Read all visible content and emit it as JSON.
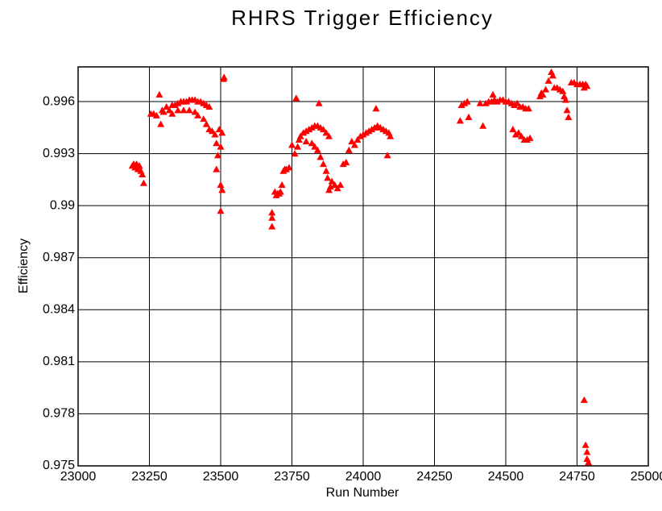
{
  "chart_data": {
    "type": "scatter",
    "title": "RHRS Trigger Efficiency",
    "xlabel": "Run Number",
    "ylabel": "Efficiency",
    "xlim": [
      23000,
      25000
    ],
    "ylim": [
      0.975,
      0.998
    ],
    "xticks": [
      23000,
      23250,
      23500,
      23750,
      24000,
      24250,
      24500,
      24750,
      25000
    ],
    "yticks": [
      0.975,
      0.978,
      0.981,
      0.984,
      0.987,
      0.99,
      0.993,
      0.996
    ],
    "grid": true,
    "series": [
      {
        "color": "#ff0000",
        "x": [
          23190,
          23195,
          23200,
          23205,
          23210,
          23215,
          23220,
          23225,
          23230,
          23255,
          23265,
          23275,
          23285,
          23290,
          23295,
          23300,
          23310,
          23320,
          23330,
          23340,
          23350,
          23360,
          23370,
          23380,
          23390,
          23400,
          23410,
          23420,
          23430,
          23440,
          23450,
          23460,
          23330,
          23350,
          23370,
          23390,
          23410,
          23420,
          23440,
          23450,
          23460,
          23470,
          23480,
          23485,
          23490,
          23485,
          23495,
          23500,
          23505,
          23500,
          23505,
          23500,
          23510,
          23512,
          23680,
          23680,
          23680,
          23690,
          23695,
          23700,
          23705,
          23710,
          23715,
          23720,
          23725,
          23730,
          23740,
          23750,
          23760,
          23765,
          23770,
          23775,
          23780,
          23790,
          23800,
          23810,
          23820,
          23830,
          23840,
          23845,
          23850,
          23860,
          23870,
          23880,
          23800,
          23820,
          23830,
          23840,
          23850,
          23860,
          23870,
          23875,
          23880,
          23885,
          23890,
          23900,
          23910,
          23920,
          23930,
          23940,
          23950,
          23960,
          23970,
          23980,
          23990,
          24000,
          24010,
          24020,
          24030,
          24040,
          24045,
          24050,
          24060,
          24070,
          24080,
          24085,
          24090,
          24095,
          24340,
          24345,
          24355,
          24365,
          24370,
          24410,
          24420,
          24430,
          24440,
          24450,
          24455,
          24460,
          24470,
          24480,
          24490,
          24500,
          24510,
          24520,
          24525,
          24530,
          24535,
          24540,
          24545,
          24550,
          24555,
          24560,
          24565,
          24570,
          24575,
          24580,
          24585,
          24620,
          24625,
          24630,
          24640,
          24650,
          24660,
          24665,
          24670,
          24680,
          24690,
          24700,
          24705,
          24710,
          24715,
          24720,
          24730,
          24740,
          24750,
          24760,
          24770,
          24775,
          24780,
          24785,
          24775,
          24780,
          24785,
          24785,
          24790
        ],
        "values": [
          0.9923,
          0.9924,
          0.9922,
          0.9924,
          0.9921,
          0.9923,
          0.992,
          0.9918,
          0.9913,
          0.9953,
          0.9953,
          0.9952,
          0.9964,
          0.9947,
          0.9955,
          0.9954,
          0.9957,
          0.9955,
          0.9958,
          0.9958,
          0.9959,
          0.996,
          0.996,
          0.996,
          0.9961,
          0.9961,
          0.9961,
          0.996,
          0.996,
          0.9959,
          0.9958,
          0.9957,
          0.9953,
          0.9955,
          0.9955,
          0.9955,
          0.9954,
          0.9952,
          0.995,
          0.9947,
          0.9944,
          0.9943,
          0.9941,
          0.9936,
          0.9929,
          0.9921,
          0.9944,
          0.9934,
          0.9942,
          0.9912,
          0.9909,
          0.9897,
          0.9973,
          0.9974,
          0.9896,
          0.9893,
          0.9888,
          0.9908,
          0.9906,
          0.9907,
          0.9907,
          0.9908,
          0.9912,
          0.992,
          0.9921,
          0.9921,
          0.9922,
          0.9935,
          0.993,
          0.9962,
          0.9934,
          0.9938,
          0.994,
          0.9942,
          0.9943,
          0.9944,
          0.9945,
          0.9946,
          0.9946,
          0.9959,
          0.9945,
          0.9944,
          0.9942,
          0.994,
          0.9937,
          0.9936,
          0.9934,
          0.9932,
          0.9928,
          0.9924,
          0.992,
          0.9916,
          0.9909,
          0.9911,
          0.9914,
          0.9912,
          0.991,
          0.9912,
          0.9924,
          0.9925,
          0.9932,
          0.9937,
          0.9935,
          0.9938,
          0.994,
          0.9941,
          0.9942,
          0.9943,
          0.9944,
          0.9945,
          0.9956,
          0.9946,
          0.9945,
          0.9944,
          0.9943,
          0.9929,
          0.9942,
          0.994,
          0.9949,
          0.9958,
          0.9959,
          0.996,
          0.9951,
          0.9959,
          0.9946,
          0.9959,
          0.996,
          0.996,
          0.9964,
          0.9961,
          0.996,
          0.9961,
          0.9961,
          0.996,
          0.996,
          0.9959,
          0.9944,
          0.9958,
          0.9941,
          0.9959,
          0.9942,
          0.9957,
          0.994,
          0.9957,
          0.9938,
          0.9956,
          0.9938,
          0.9956,
          0.9939,
          0.9963,
          0.9965,
          0.9964,
          0.9967,
          0.9972,
          0.9977,
          0.9975,
          0.9968,
          0.9968,
          0.9967,
          0.9966,
          0.9963,
          0.9961,
          0.9955,
          0.9951,
          0.9971,
          0.9971,
          0.997,
          0.997,
          0.997,
          0.9968,
          0.997,
          0.9969,
          0.9788,
          0.9762,
          0.9758,
          0.9754,
          0.9752
        ]
      }
    ]
  }
}
